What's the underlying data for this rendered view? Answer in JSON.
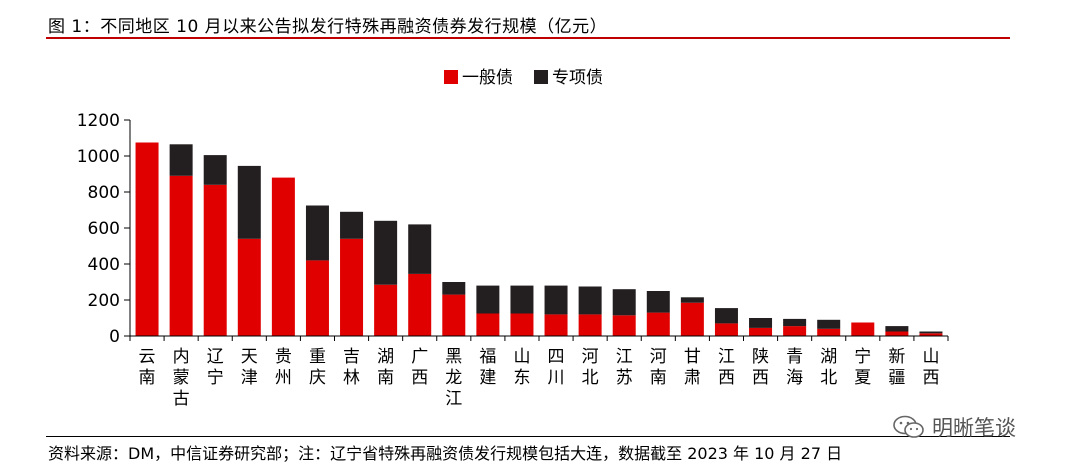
{
  "header": {
    "title": "图 1：不同地区 10 月以来公告拟发行特殊再融资债券发行规模（亿元）"
  },
  "footer": {
    "source": "资料来源：DM，中信证券研究部；注：辽宁省特殊再融资债发行规模包括大连，数据截至 2023 年 10 月 27 日",
    "watermark": "明晰笔谈",
    "watermark_icon": "wechat-icon"
  },
  "chart_data": {
    "type": "bar",
    "stacked": true,
    "title": "",
    "xlabel": "",
    "ylabel": "",
    "ylim": [
      0,
      1200
    ],
    "yticks": [
      0,
      200,
      400,
      600,
      800,
      1000,
      1200
    ],
    "grid": false,
    "legend_position": "top",
    "categories": [
      "云南",
      "内蒙古",
      "辽宁",
      "天津",
      "贵州",
      "重庆",
      "吉林",
      "湖南",
      "广西",
      "黑龙江",
      "福建",
      "山东",
      "四川",
      "河北",
      "江苏",
      "河南",
      "甘肃",
      "江西",
      "陕西",
      "青海",
      "湖北",
      "宁夏",
      "新疆",
      "山西"
    ],
    "series": [
      {
        "name": "一般债",
        "color": "#e00000",
        "values": [
          1075,
          890,
          840,
          540,
          880,
          420,
          540,
          285,
          345,
          230,
          125,
          125,
          120,
          120,
          115,
          130,
          185,
          70,
          45,
          55,
          40,
          75,
          25,
          15
        ]
      },
      {
        "name": "专项债",
        "color": "#231f20",
        "values": [
          0,
          175,
          165,
          405,
          0,
          305,
          150,
          355,
          275,
          70,
          155,
          155,
          160,
          155,
          145,
          120,
          30,
          85,
          55,
          40,
          50,
          0,
          30,
          10
        ]
      }
    ]
  }
}
